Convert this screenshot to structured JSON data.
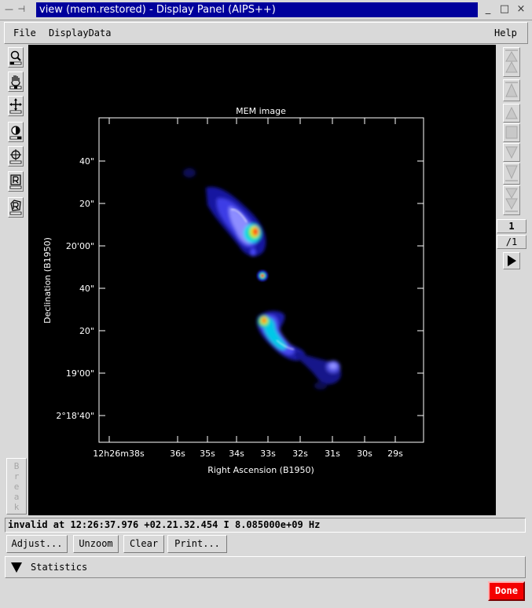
{
  "window": {
    "menu_glyph": "— ⊣",
    "title": "view (mem.restored) - Display Panel (AIPS++)",
    "min_glyph": "_",
    "max_glyph": "□",
    "close_glyph": "×"
  },
  "menubar": {
    "file": "File",
    "displaydata": "DisplayData",
    "help": "Help"
  },
  "toolbar": {
    "tools": [
      "zoom-tool-icon",
      "pan-tool-icon",
      "crosshair-tool-icon",
      "colormap-tool-icon",
      "position-tool-icon",
      "rectangle-region-icon",
      "polygon-region-icon"
    ],
    "break_label": [
      "B",
      "r",
      "e",
      "a",
      "k"
    ]
  },
  "plot": {
    "title": "MEM image",
    "xlabel": "Right Ascension (B1950)",
    "ylabel": "Declination (B1950)",
    "x_ticks": [
      "12h26m38s",
      "36s",
      "35s",
      "34s",
      "33s",
      "32s",
      "31s",
      "30s",
      "29s"
    ],
    "y_ticks": [
      "40\"",
      "20\"",
      "20'00\"",
      "40\"",
      "20\"",
      "19'00\"",
      "2°18'40\""
    ]
  },
  "animator": {
    "frame_current": "1",
    "frame_total": "/1",
    "buttons": [
      "rewind-fast-icon",
      "step-back-many-icon",
      "step-back-icon",
      "stop-icon",
      "step-forward-icon",
      "step-forward-many-icon",
      "forward-fast-icon",
      "play-icon"
    ]
  },
  "status": {
    "text": "invalid at 12:26:37.976 +02.21.32.454 I 8.085000e+09 Hz"
  },
  "buttons": {
    "adjust": "Adjust...",
    "unzoom": "Unzoom",
    "clear": "Clear",
    "print": "Print..."
  },
  "statistics": {
    "label": "Statistics"
  },
  "done": {
    "label": "Done"
  },
  "colors": {
    "title_bg": "#00009c",
    "canvas_bg": "#000000",
    "done_bg": "#f40000",
    "panel_bg": "#d9d9d9"
  }
}
